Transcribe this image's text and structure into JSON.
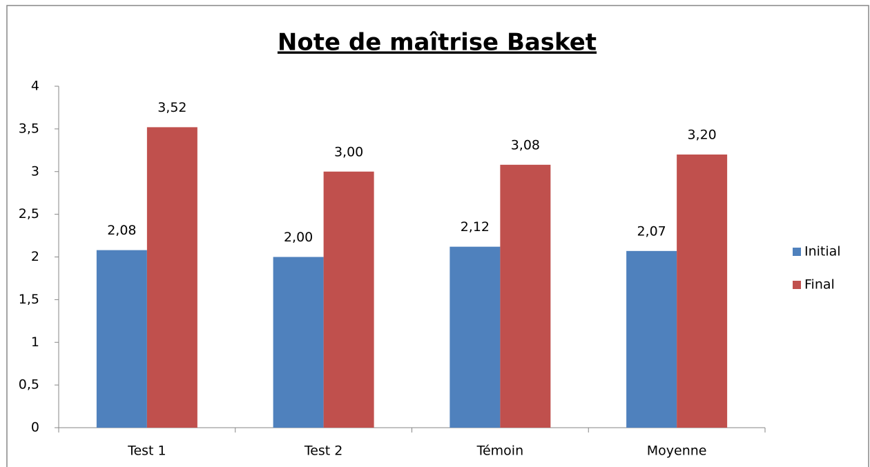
{
  "chart_data": {
    "type": "bar",
    "title": "Note de maîtrise Basket",
    "categories": [
      "Test 1",
      "Test 2",
      "Témoin",
      "Moyenne"
    ],
    "series": [
      {
        "name": "Initial",
        "color": "#4f81bd",
        "values": [
          2.08,
          2.0,
          2.12,
          2.07
        ],
        "value_labels": [
          "2,08",
          "2,00",
          "2,12",
          "2,07"
        ]
      },
      {
        "name": "Final",
        "color": "#c0504d",
        "values": [
          3.52,
          3.0,
          3.08,
          3.2
        ],
        "value_labels": [
          "3,52",
          "3,00",
          "3,08",
          "3,20"
        ]
      }
    ],
    "ylim": [
      0,
      4
    ],
    "yticks": [
      0,
      {
        "value": 0.5,
        "label": "0,5"
      },
      1,
      {
        "value": 1.5,
        "label": "1,5"
      },
      2,
      {
        "value": 2.5,
        "label": "2,5"
      },
      3,
      {
        "value": 3.5,
        "label": "3,5"
      },
      4
    ],
    "grid": false,
    "legend": "right"
  }
}
